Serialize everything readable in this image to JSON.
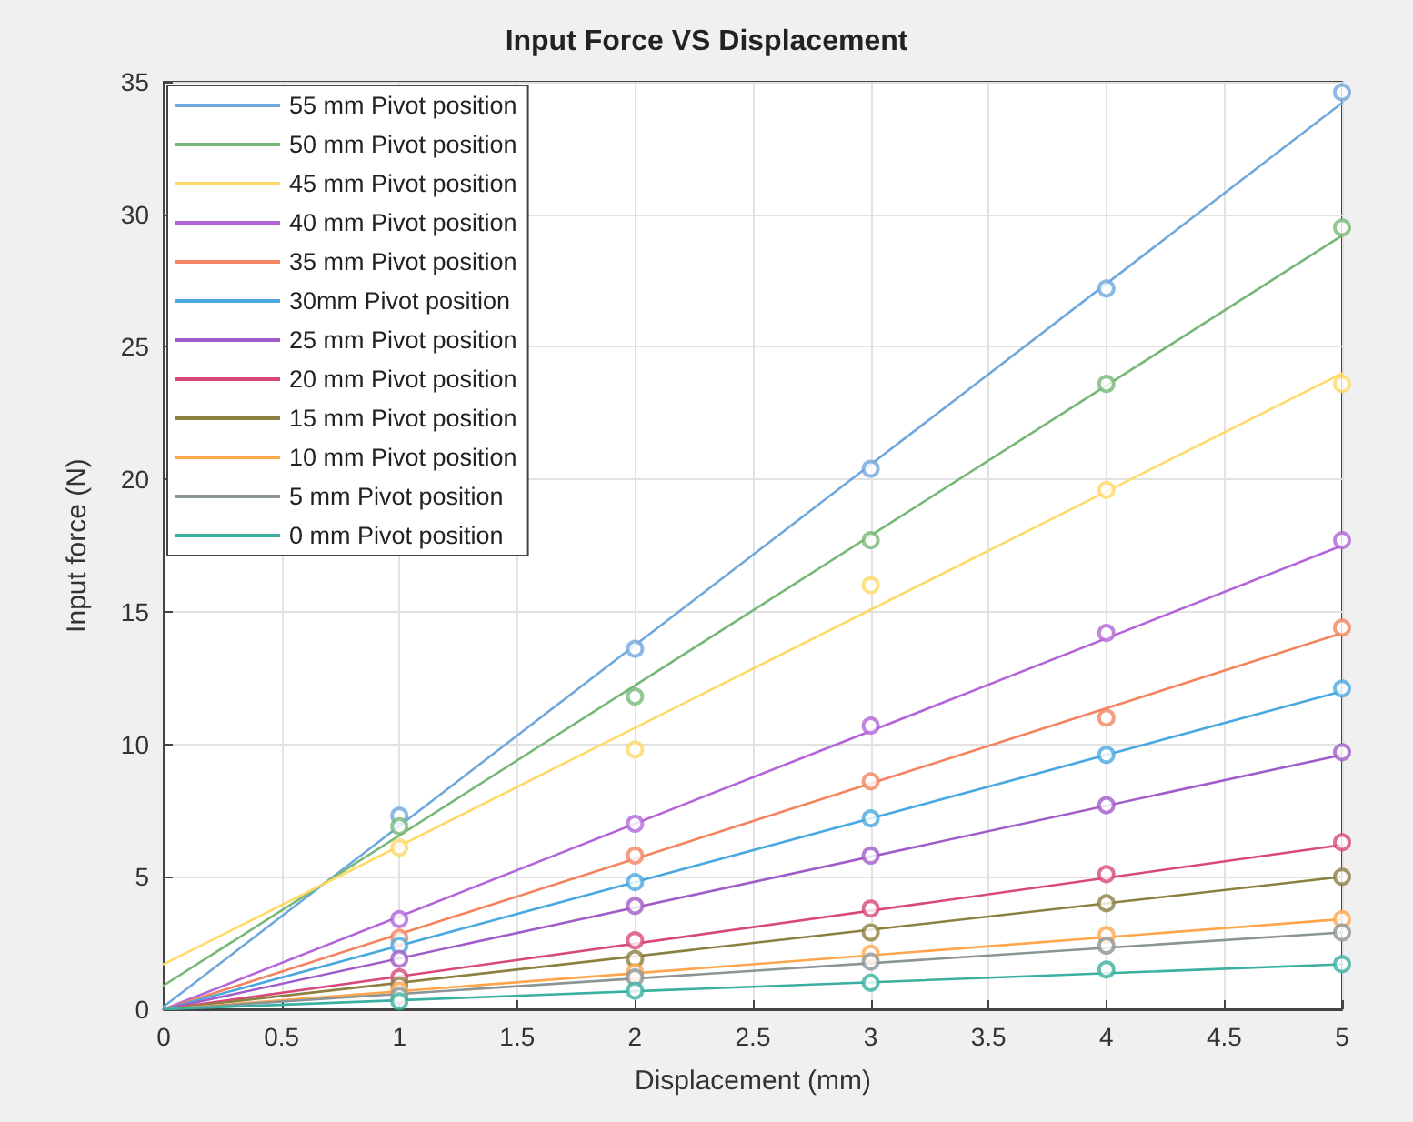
{
  "chart_data": {
    "type": "line",
    "title": "Input Force VS Displacement",
    "xlabel": "Displacement (mm)",
    "ylabel": "Input force (N)",
    "xlim": [
      0,
      5
    ],
    "xticks": [
      0,
      0.5,
      1,
      1.5,
      2,
      2.5,
      3,
      3.5,
      4,
      4.5,
      5
    ],
    "ylim": [
      0,
      35
    ],
    "yticks": [
      0,
      5,
      10,
      15,
      20,
      25,
      30,
      35
    ],
    "grid": true,
    "legend": "top left",
    "line_style": "solid",
    "series": [
      {
        "name": "55 mm Pivot position",
        "color": "#6fa8dc",
        "marker": "none",
        "x": [
          0,
          5
        ],
        "values": [
          0.1,
          34.2
        ]
      },
      {
        "name": "50 mm Pivot position",
        "color": "#77b877",
        "marker": "none",
        "x": [
          0,
          5
        ],
        "values": [
          0.9,
          29.2
        ]
      },
      {
        "name": "45 mm Pivot position",
        "color": "#ffd966",
        "marker": "none",
        "x": [
          0,
          5
        ],
        "values": [
          1.7,
          24.0
        ]
      },
      {
        "name": "40 mm Pivot position",
        "color": "#b266d9",
        "marker": "none",
        "x": [
          0,
          5
        ],
        "values": [
          0,
          17.5
        ]
      },
      {
        "name": "35 mm Pivot position",
        "color": "#f4845f",
        "marker": "none",
        "x": [
          0,
          5
        ],
        "values": [
          0,
          14.2
        ]
      },
      {
        "name": "30mm Pivot position",
        "color": "#4aa8e0",
        "marker": "none",
        "x": [
          0,
          5
        ],
        "values": [
          0,
          12.0
        ]
      },
      {
        "name": "25 mm Pivot position",
        "color": "#a05cc8",
        "marker": "none",
        "x": [
          0,
          5
        ],
        "values": [
          0,
          9.6
        ]
      },
      {
        "name": "20 mm Pivot position",
        "color": "#d9487a",
        "marker": "none",
        "x": [
          0,
          5
        ],
        "values": [
          0,
          6.2
        ]
      },
      {
        "name": "15 mm Pivot position",
        "color": "#8c8040",
        "marker": "none",
        "x": [
          0,
          5
        ],
        "values": [
          0,
          5.0
        ]
      },
      {
        "name": "10 mm Pivot position",
        "color": "#ffa64d",
        "marker": "none",
        "x": [
          0,
          5
        ],
        "values": [
          0,
          3.4
        ]
      },
      {
        "name": "5 mm Pivot position",
        "color": "#8c9596",
        "marker": "none",
        "x": [
          0,
          5
        ],
        "values": [
          0,
          2.9
        ]
      },
      {
        "name": "0 mm Pivot position",
        "color": "#3bb0a0",
        "marker": "none",
        "x": [
          0,
          5
        ],
        "values": [
          0,
          1.7
        ]
      },
      {
        "color": "#6fa8dc",
        "type": "scatter",
        "marker": "circle",
        "x": [
          1,
          2,
          3,
          4,
          5
        ],
        "values": [
          7.3,
          13.6,
          20.4,
          27.2,
          34.6
        ]
      },
      {
        "color": "#77b877",
        "type": "scatter",
        "marker": "circle",
        "x": [
          1,
          2,
          3,
          4,
          5
        ],
        "values": [
          6.9,
          11.8,
          17.7,
          23.6,
          29.5
        ]
      },
      {
        "color": "#ffd966",
        "type": "scatter",
        "marker": "circle",
        "x": [
          1,
          2,
          3,
          4,
          5
        ],
        "values": [
          6.1,
          9.8,
          16.0,
          19.6,
          23.6
        ]
      },
      {
        "color": "#b266d9",
        "type": "scatter",
        "marker": "circle",
        "x": [
          1,
          2,
          3,
          4,
          5
        ],
        "values": [
          3.4,
          7.0,
          10.7,
          14.2,
          17.7
        ]
      },
      {
        "color": "#f4845f",
        "type": "scatter",
        "marker": "circle",
        "x": [
          1,
          2,
          3,
          4,
          5
        ],
        "values": [
          2.7,
          5.8,
          8.6,
          11.0,
          14.4
        ]
      },
      {
        "color": "#4aa8e0",
        "type": "scatter",
        "marker": "circle",
        "x": [
          1,
          2,
          3,
          4,
          5
        ],
        "values": [
          2.4,
          4.8,
          7.2,
          9.6,
          12.1
        ]
      },
      {
        "color": "#a05cc8",
        "type": "scatter",
        "marker": "circle",
        "x": [
          1,
          2,
          3,
          4,
          5
        ],
        "values": [
          1.9,
          3.9,
          5.8,
          7.7,
          9.7
        ]
      },
      {
        "color": "#d9487a",
        "type": "scatter",
        "marker": "circle",
        "x": [
          1,
          2,
          3,
          4,
          5
        ],
        "values": [
          1.2,
          2.6,
          3.8,
          5.1,
          6.3
        ]
      },
      {
        "color": "#8c8040",
        "type": "scatter",
        "marker": "circle",
        "x": [
          1,
          2,
          3,
          4,
          5
        ],
        "values": [
          0.9,
          1.9,
          2.9,
          4.0,
          5.0
        ]
      },
      {
        "color": "#ffa64d",
        "type": "scatter",
        "marker": "circle",
        "x": [
          1,
          2,
          3,
          4,
          5
        ],
        "values": [
          0.7,
          1.4,
          2.1,
          2.8,
          3.4
        ]
      },
      {
        "color": "#8c9596",
        "type": "scatter",
        "marker": "circle",
        "x": [
          1,
          2,
          3,
          4,
          5
        ],
        "values": [
          0.5,
          1.2,
          1.8,
          2.4,
          2.9
        ]
      },
      {
        "color": "#3bb0a0",
        "type": "scatter",
        "marker": "circle",
        "x": [
          1,
          2,
          3,
          4,
          5
        ],
        "values": [
          0.3,
          0.7,
          1.0,
          1.5,
          1.7
        ]
      }
    ]
  }
}
